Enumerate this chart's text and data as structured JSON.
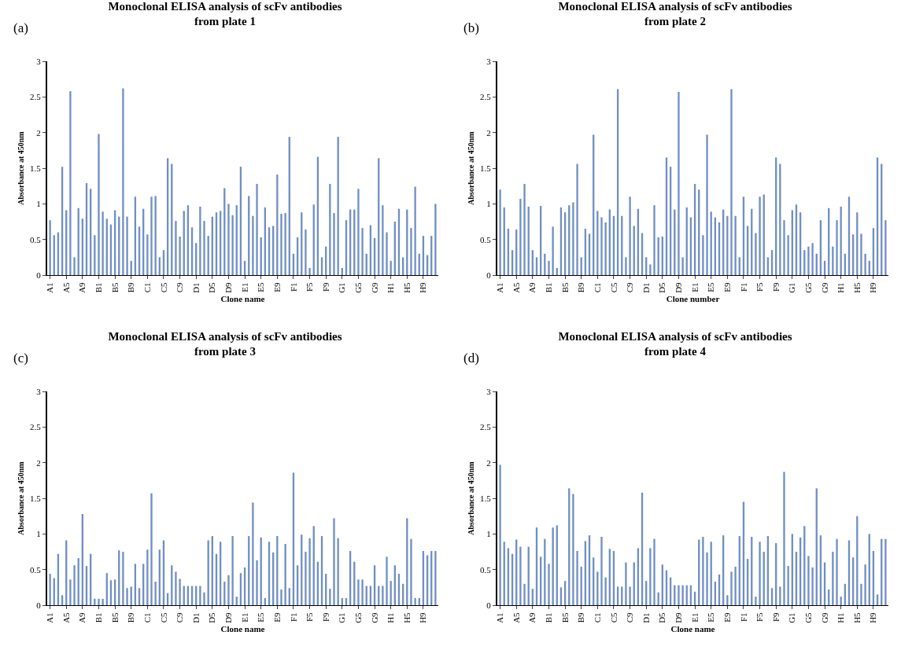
{
  "chart_data": [
    {
      "type": "bar",
      "title": "Monoclonal ELISA analysis of scFv antibodies\nfrom plate 1",
      "xlabel": "Clone name",
      "ylabel": "Absorbance at 450nm",
      "annotations": [
        "(a)"
      ],
      "color": "#6f8fc4",
      "ylim": [
        0,
        3
      ],
      "yticks": [
        0,
        0.5,
        1,
        1.5,
        2,
        2.5,
        3
      ],
      "categories": [
        "A1",
        null,
        null,
        null,
        "A5",
        null,
        null,
        null,
        "A9",
        null,
        null,
        null,
        "B1",
        null,
        null,
        null,
        "B5",
        null,
        null,
        null,
        "B9",
        null,
        null,
        null,
        "C1",
        null,
        null,
        null,
        "C5",
        null,
        null,
        null,
        "C9",
        null,
        null,
        null,
        "D1",
        null,
        null,
        null,
        "D5",
        null,
        null,
        null,
        "D9",
        null,
        null,
        null,
        "E1",
        null,
        null,
        null,
        "E5",
        null,
        null,
        null,
        "E9",
        null,
        null,
        null,
        "F1",
        null,
        null,
        null,
        "F5",
        null,
        null,
        null,
        "F9",
        null,
        null,
        null,
        "G1",
        null,
        null,
        null,
        "G5",
        null,
        null,
        null,
        "G9",
        null,
        null,
        null,
        "H1",
        null,
        null,
        null,
        "H5",
        null,
        null,
        null,
        "H9",
        null,
        null,
        null
      ],
      "values": [
        0.77,
        0.56,
        0.6,
        1.52,
        0.91,
        2.58,
        0.25,
        0.94,
        0.79,
        1.29,
        1.21,
        0.56,
        1.98,
        0.89,
        0.79,
        0.71,
        0.91,
        0.82,
        2.62,
        0.82,
        0.2,
        1.1,
        0.68,
        0.93,
        0.57,
        1.1,
        1.11,
        0.25,
        0.35,
        1.64,
        1.56,
        0.76,
        0.54,
        0.9,
        0.98,
        0.67,
        0.45,
        0.96,
        0.76,
        0.55,
        0.82,
        0.88,
        0.9,
        1.22,
        1.0,
        0.84,
        0.98,
        1.52,
        0.2,
        1.11,
        0.83,
        1.28,
        0.53,
        0.95,
        0.67,
        0.69,
        1.41,
        0.86,
        0.87,
        1.94,
        0.3,
        0.53,
        0.88,
        0.64,
        0.1,
        0.99,
        1.66,
        0.25,
        0.4,
        1.28,
        0.87,
        1.94,
        0.1,
        0.77,
        0.92,
        0.92,
        1.21,
        0.66,
        0.3,
        0.7,
        0.52,
        1.64,
        0.98,
        0.6,
        0.2,
        0.75,
        0.93,
        0.25,
        0.92,
        0.66,
        1.24,
        0.3,
        0.55,
        0.28,
        0.55,
        1.0
      ]
    },
    {
      "type": "bar",
      "title": "Monoclonal ELISA analysis of scFv antibodies\nfrom plate 2",
      "xlabel": "Clone number",
      "ylabel": "Absorbance at 450nm",
      "annotations": [
        "(b)"
      ],
      "color": "#6f8fc4",
      "ylim": [
        0,
        3
      ],
      "yticks": [
        0,
        0.5,
        1,
        1.5,
        2,
        2.5,
        3
      ],
      "categories": [
        "A1",
        null,
        null,
        null,
        "A5",
        null,
        null,
        null,
        "A9",
        null,
        null,
        null,
        "B1",
        null,
        null,
        null,
        "B5",
        null,
        null,
        null,
        "B9",
        null,
        null,
        null,
        "C1",
        null,
        null,
        null,
        "C5",
        null,
        null,
        null,
        "C9",
        null,
        null,
        null,
        "D1",
        null,
        null,
        null,
        "D5",
        null,
        null,
        null,
        "D9",
        null,
        null,
        null,
        "E1",
        null,
        null,
        null,
        "E5",
        null,
        null,
        null,
        "E9",
        null,
        null,
        null,
        "F1",
        null,
        null,
        null,
        "F5",
        null,
        null,
        null,
        "F9",
        null,
        null,
        null,
        "G1",
        null,
        null,
        null,
        "G5",
        null,
        null,
        null,
        "G9",
        null,
        null,
        null,
        "H1",
        null,
        null,
        null,
        "H5",
        null,
        null,
        null,
        "H9",
        null,
        null,
        null
      ],
      "values": [
        1.2,
        0.95,
        0.65,
        0.35,
        0.64,
        1.07,
        1.28,
        0.96,
        0.35,
        0.25,
        0.97,
        0.3,
        0.2,
        0.68,
        0.1,
        0.95,
        0.88,
        0.98,
        1.02,
        1.56,
        0.25,
        0.65,
        0.58,
        1.97,
        0.9,
        0.81,
        0.74,
        0.92,
        0.83,
        2.61,
        0.83,
        0.25,
        1.1,
        0.69,
        0.93,
        0.59,
        0.25,
        0.15,
        0.98,
        0.53,
        0.54,
        1.65,
        1.52,
        0.92,
        2.57,
        0.25,
        0.95,
        0.81,
        1.28,
        1.2,
        0.56,
        1.97,
        0.89,
        0.81,
        0.74,
        0.92,
        0.83,
        2.61,
        0.83,
        0.25,
        1.1,
        0.69,
        0.93,
        0.59,
        1.1,
        1.13,
        0.25,
        0.35,
        1.65,
        1.56,
        0.77,
        0.56,
        0.91,
        0.99,
        0.88,
        0.35,
        0.4,
        0.45,
        0.3,
        0.77,
        0.2,
        0.94,
        0.4,
        0.77,
        0.96,
        0.3,
        1.1,
        0.57,
        0.88,
        0.58,
        0.3,
        0.2,
        0.66,
        1.65,
        1.56,
        0.77
      ]
    },
    {
      "type": "bar",
      "title": "Monoclonal ELISA analysis of scFv antibodies\nfrom plate 3",
      "xlabel": "Clone name",
      "ylabel": "Absorbance at 450nm",
      "annotations": [
        "(c)"
      ],
      "color": "#6f8fc4",
      "ylim": [
        0,
        3
      ],
      "yticks": [
        0,
        0.5,
        1,
        1.5,
        2,
        2.5,
        3
      ],
      "categories": [
        "A1",
        null,
        null,
        null,
        "A5",
        null,
        null,
        null,
        "A9",
        null,
        null,
        null,
        "B1",
        null,
        null,
        null,
        "B5",
        null,
        null,
        null,
        "B9",
        null,
        null,
        null,
        "C1",
        null,
        null,
        null,
        "C5",
        null,
        null,
        null,
        "C9",
        null,
        null,
        null,
        "D1",
        null,
        null,
        null,
        "D5",
        null,
        null,
        null,
        "D9",
        null,
        null,
        null,
        "E1",
        null,
        null,
        null,
        "E5",
        null,
        null,
        null,
        "E9",
        null,
        null,
        null,
        "F1",
        null,
        null,
        null,
        "F5",
        null,
        null,
        null,
        "F9",
        null,
        null,
        null,
        "G1",
        null,
        null,
        null,
        "G5",
        null,
        null,
        null,
        "G9",
        null,
        null,
        null,
        "H1",
        null,
        null,
        null,
        "H5",
        null,
        null,
        null,
        "H9",
        null,
        null,
        null
      ],
      "values": [
        0.44,
        0.38,
        0.72,
        0.14,
        0.91,
        0.36,
        0.56,
        0.66,
        1.28,
        0.55,
        0.72,
        0.09,
        0.09,
        0.09,
        0.45,
        0.35,
        0.36,
        0.77,
        0.75,
        0.24,
        0.26,
        0.58,
        0.24,
        0.58,
        0.78,
        1.57,
        0.33,
        0.78,
        0.91,
        0.17,
        0.56,
        0.47,
        0.37,
        0.27,
        0.27,
        0.27,
        0.27,
        0.27,
        0.18,
        0.91,
        0.97,
        0.72,
        0.89,
        0.33,
        0.42,
        0.97,
        0.12,
        0.45,
        0.53,
        0.97,
        1.44,
        0.63,
        0.95,
        0.1,
        0.89,
        0.74,
        0.97,
        0.22,
        0.86,
        0.24,
        1.86,
        0.56,
        0.99,
        0.75,
        0.94,
        1.11,
        0.61,
        0.97,
        0.44,
        0.23,
        1.22,
        0.94,
        0.1,
        0.1,
        0.76,
        0.61,
        0.36,
        0.36,
        0.27,
        0.27,
        0.56,
        0.27,
        0.27,
        0.68,
        0.34,
        0.56,
        0.44,
        0.3,
        1.22,
        0.93,
        0.1,
        0.1,
        0.76,
        0.7,
        0.76,
        0.76
      ]
    },
    {
      "type": "bar",
      "title": "Monoclonal ELISA analysis of scFv antibodies\nfrom plate 4",
      "xlabel": "Clone name",
      "ylabel": "Absorbance at 450nm",
      "annotations": [
        "(d)"
      ],
      "color": "#6f8fc4",
      "ylim": [
        0,
        3
      ],
      "yticks": [
        0,
        0.5,
        1,
        1.5,
        2,
        2.5,
        3
      ],
      "categories": [
        "A1",
        null,
        null,
        null,
        "A5",
        null,
        null,
        null,
        "A9",
        null,
        null,
        null,
        "B1",
        null,
        null,
        null,
        "B5",
        null,
        null,
        null,
        "B9",
        null,
        null,
        null,
        "C1",
        null,
        null,
        null,
        "C5",
        null,
        null,
        null,
        "C9",
        null,
        null,
        null,
        "D1",
        null,
        null,
        null,
        "D5",
        null,
        null,
        null,
        "D9",
        null,
        null,
        null,
        "E1",
        null,
        null,
        null,
        "E5",
        null,
        null,
        null,
        "E9",
        null,
        null,
        null,
        "F1",
        null,
        null,
        null,
        "F5",
        null,
        null,
        null,
        "F9",
        null,
        null,
        null,
        "G1",
        null,
        null,
        null,
        "G5",
        null,
        null,
        null,
        "G9",
        null,
        null,
        null,
        "H1",
        null,
        null,
        null,
        "H5",
        null,
        null,
        null,
        "H9",
        null,
        null,
        null
      ],
      "values": [
        1.97,
        0.89,
        0.8,
        0.72,
        0.92,
        0.82,
        0.3,
        0.82,
        0.23,
        1.09,
        0.68,
        0.93,
        0.58,
        1.09,
        1.12,
        0.25,
        0.34,
        1.64,
        1.56,
        0.76,
        0.54,
        0.9,
        0.98,
        0.67,
        0.47,
        0.96,
        0.39,
        0.79,
        0.76,
        0.26,
        0.26,
        0.6,
        0.26,
        0.6,
        0.8,
        1.58,
        0.34,
        0.8,
        0.93,
        0.18,
        0.57,
        0.49,
        0.39,
        0.28,
        0.28,
        0.28,
        0.28,
        0.28,
        0.19,
        0.92,
        0.96,
        0.74,
        0.89,
        0.33,
        0.43,
        0.98,
        0.14,
        0.47,
        0.54,
        0.97,
        1.45,
        0.65,
        0.96,
        0.12,
        0.89,
        0.75,
        0.97,
        0.24,
        0.87,
        0.26,
        1.87,
        0.55,
        1.0,
        0.75,
        0.95,
        1.11,
        0.69,
        0.53,
        1.64,
        0.98,
        0.6,
        0.22,
        0.75,
        0.93,
        0.12,
        0.3,
        0.91,
        0.67,
        1.25,
        0.3,
        0.57,
        1.0,
        0.76,
        0.15,
        0.93,
        0.93
      ]
    }
  ]
}
